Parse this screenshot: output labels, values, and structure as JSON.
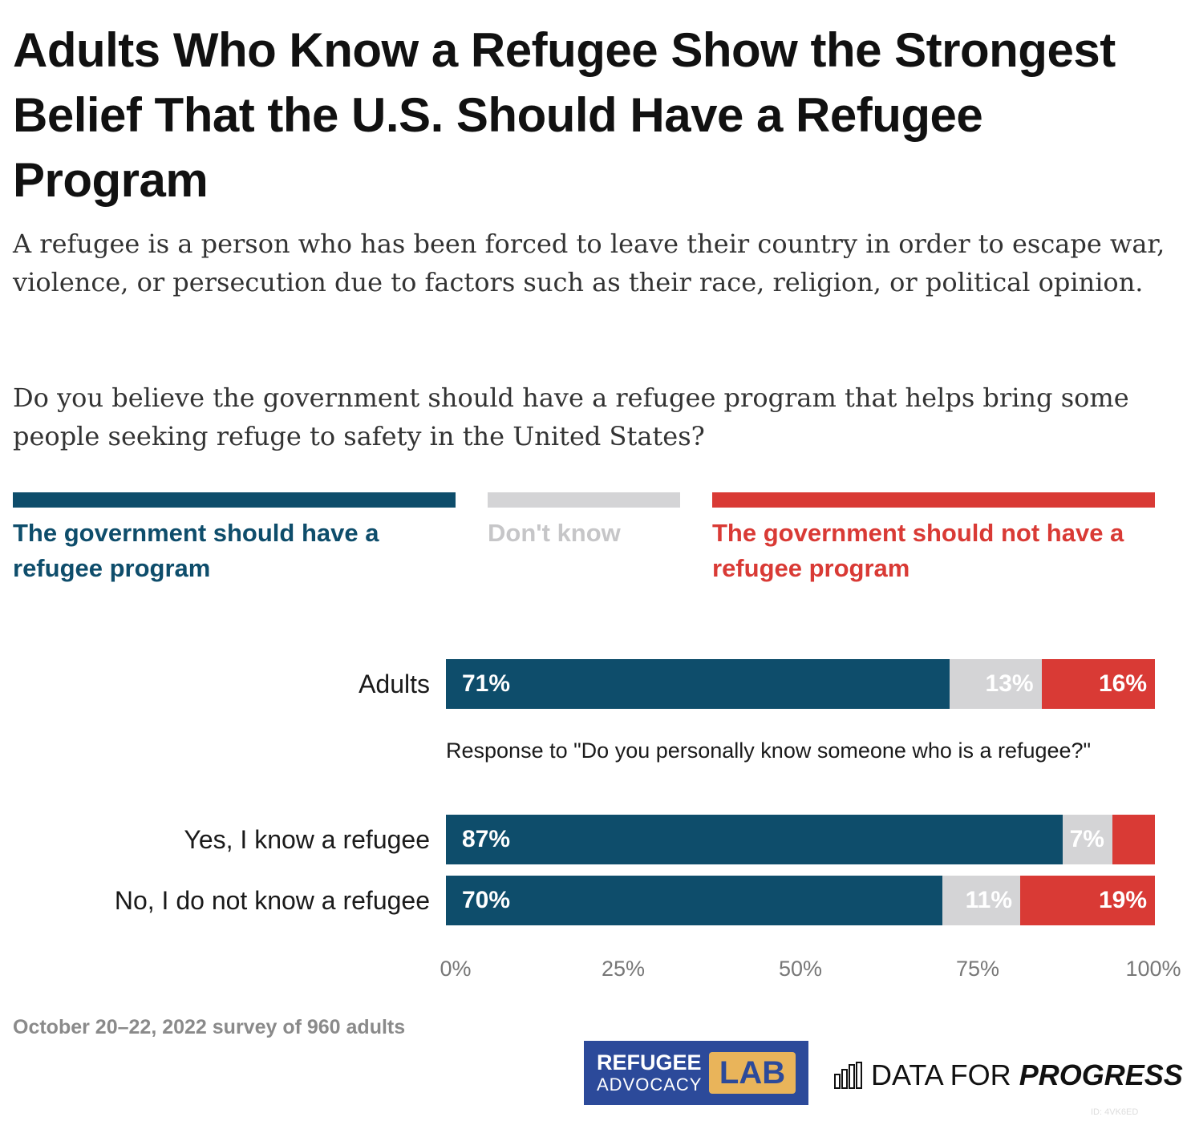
{
  "header": {
    "title": "Adults Who Know a Refugee Show the Strongest Belief That the U.S. Should Have a Refugee Program",
    "subtitle": "A refugee is a person who has been forced to leave their country in order to escape war, violence, or persecution due to factors such as their race, religion, or political opinion.",
    "question": "Do you believe the government should have a refugee program that helps bring some people seeking refuge to safety in the United States?"
  },
  "colors": {
    "should_have": "#0e4d6b",
    "dont_know": "#d4d4d6",
    "should_not": "#d93a35",
    "dont_know_text": "#c6c6c8"
  },
  "chart_data": {
    "type": "bar",
    "orientation": "horizontal",
    "stacked": true,
    "legend_position": "top",
    "xlim": [
      0,
      100
    ],
    "x_ticks": [
      "0%",
      "25%",
      "50%",
      "75%",
      "100%"
    ],
    "series": [
      {
        "name": "The government should have a refugee program",
        "color_key": "should_have"
      },
      {
        "name": "Don't know",
        "color_key": "dont_know"
      },
      {
        "name": "The government should not have a refugee program",
        "color_key": "should_not"
      }
    ],
    "group_note": "Response to \"Do you personally know someone who is a refugee?\"",
    "rows": [
      {
        "label": "Adults",
        "values": [
          71,
          13,
          16
        ],
        "value_labels": [
          "71%",
          "13%",
          "16%"
        ]
      },
      {
        "label": "Yes, I know a refugee",
        "values": [
          87,
          7,
          6
        ],
        "value_labels": [
          "87%",
          "7%",
          ""
        ]
      },
      {
        "label": "No, I do not know a refugee",
        "values": [
          70,
          11,
          19
        ],
        "value_labels": [
          "70%",
          "11%",
          "19%"
        ]
      }
    ]
  },
  "footer": {
    "source": "October 20–22, 2022 survey of 960 adults",
    "logo_refugee_line1": "REFUGEE",
    "logo_refugee_line2": "ADVOCACY",
    "logo_lab": "LAB",
    "logo_dfp_a": "DATA FOR ",
    "logo_dfp_b": "PROGRESS",
    "id": "ID: 4VK6ED"
  }
}
